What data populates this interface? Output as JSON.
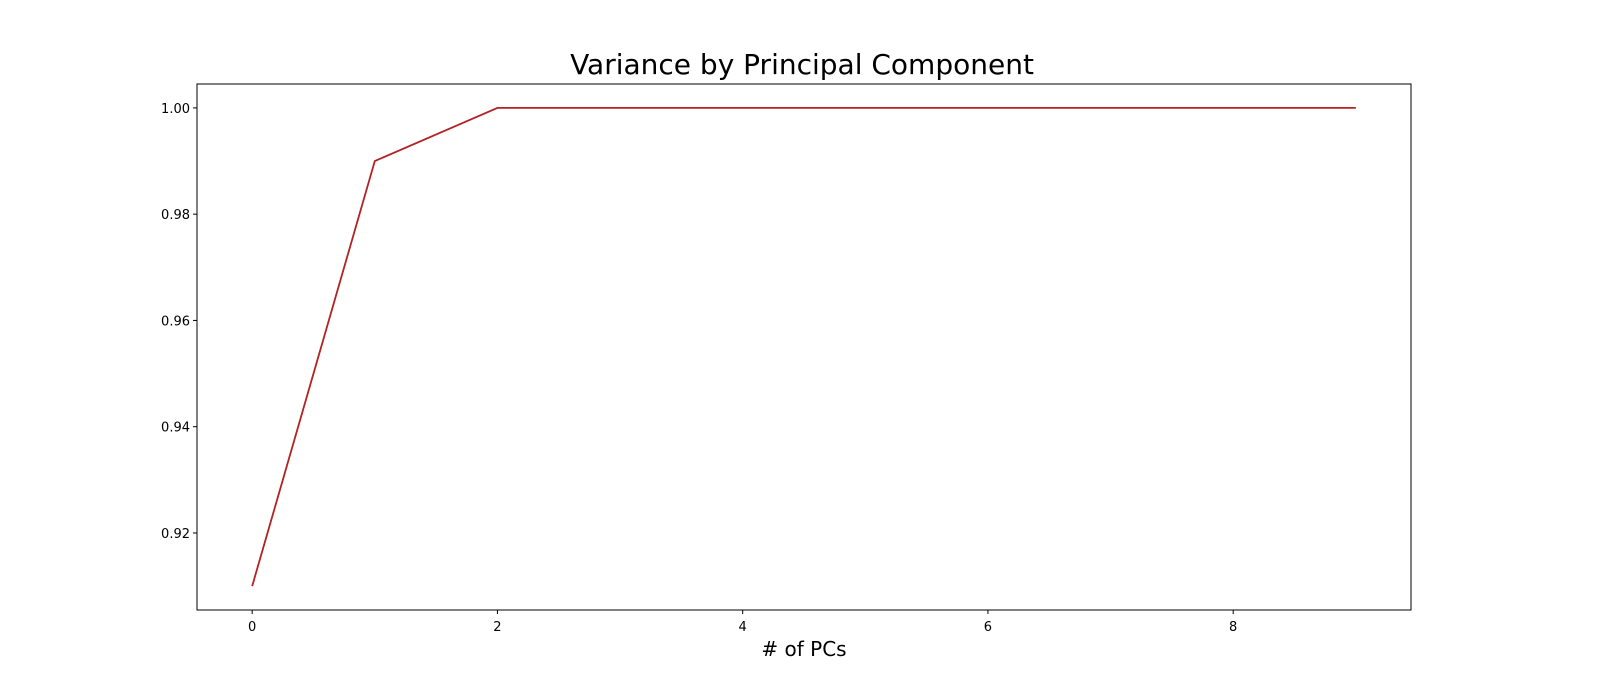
{
  "chart_data": {
    "type": "line",
    "title": "Variance by Principal Component",
    "xlabel": "# of PCs",
    "ylabel": "",
    "x": [
      0,
      1,
      2,
      3,
      4,
      5,
      6,
      7,
      8,
      9
    ],
    "series": [
      {
        "values": [
          0.91,
          0.99,
          1.0,
          1.0,
          1.0,
          1.0,
          1.0,
          1.0,
          1.0,
          1.0
        ],
        "color": "#b22222"
      }
    ],
    "xlim": [
      -0.45,
      9.45
    ],
    "ylim": [
      0.9055,
      1.0045
    ],
    "xticks": [
      0,
      2,
      4,
      6,
      8
    ],
    "xtick_labels": [
      "0",
      "2",
      "4",
      "6",
      "8"
    ],
    "yticks": [
      0.92,
      0.94,
      0.96,
      0.98,
      1.0
    ],
    "ytick_labels": [
      "0.92",
      "0.94",
      "0.96",
      "0.98",
      "1.00"
    ],
    "grid": false,
    "legend": false
  }
}
